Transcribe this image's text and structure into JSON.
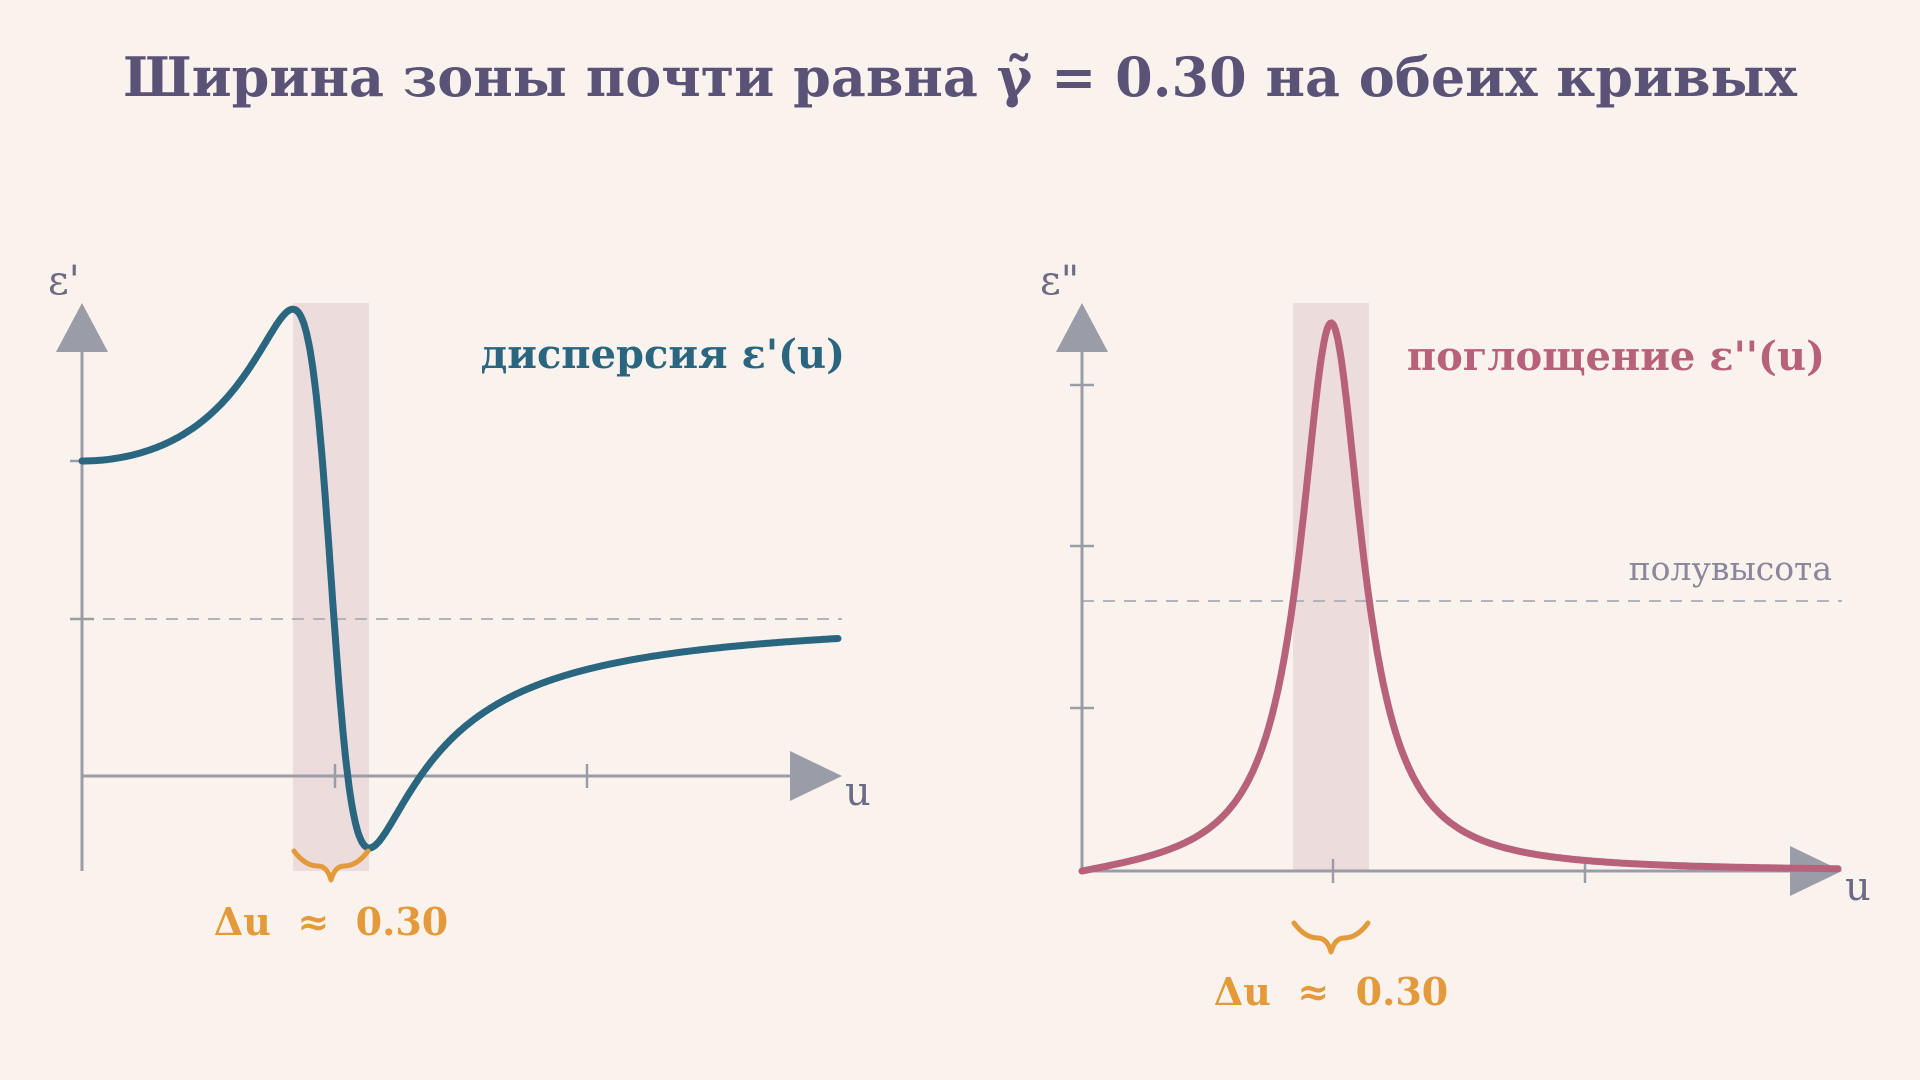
{
  "title": "Ширина зоны почти равна γ̃ = 0.30 на обеих кривых",
  "colors": {
    "dispersion": "#2b6680",
    "absorption": "#b8617a",
    "band": "#eddcdc",
    "annotation": "#e49a3a",
    "axis": "#9a9da8",
    "title": "#5b5278"
  },
  "left_panel": {
    "y_axis_label": "ε'",
    "x_axis_label": "u",
    "curve_label": "дисперсия ε'(u)",
    "width_annotation": "Δu  ≈  0.30"
  },
  "right_panel": {
    "y_axis_label": "ε\"",
    "x_axis_label": "u",
    "curve_label": "поглощение ε''(u)",
    "half_height_label": "полувысота",
    "width_annotation": "Δu  ≈  0.30"
  }
}
